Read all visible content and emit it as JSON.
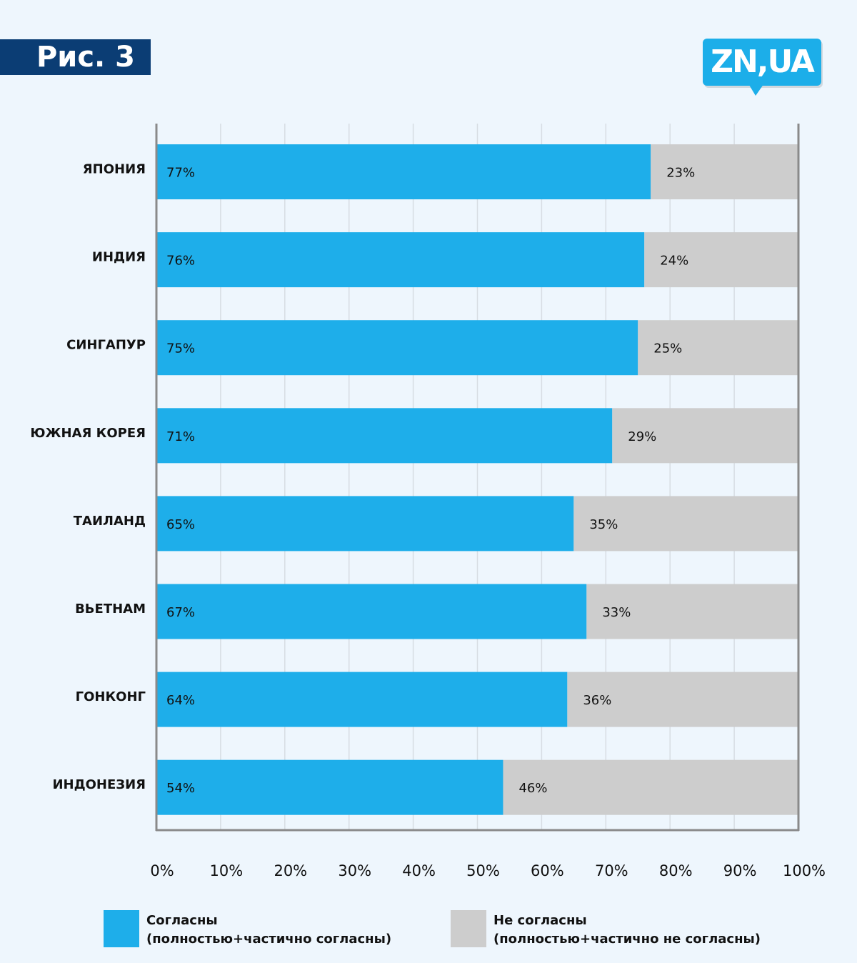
{
  "figure_label": "Рис. 3",
  "logo": {
    "text": "ZN,UA"
  },
  "colors": {
    "background": "#eef6fd",
    "agree": "#1eaeea",
    "disagree": "#cdcdcd",
    "figure_label_bg": "#0b3d74",
    "logo_bg": "#1caee9",
    "grid": "#d7dde3",
    "axis": "#8a8a8a"
  },
  "chart_data": {
    "type": "bar",
    "orientation": "horizontal",
    "stacked": true,
    "categories": [
      "ЯПОНИЯ",
      "ИНДИЯ",
      "СИНГАПУР",
      "ЮЖНАЯ КОРЕЯ",
      "ТАИЛАНД",
      "ВЬЕТНАМ",
      "ГОНКОНГ",
      "ИНДОНЕЗИЯ"
    ],
    "series": [
      {
        "name": "Согласны (полностью+частично согласны)",
        "values": [
          77,
          76,
          75,
          71,
          65,
          67,
          64,
          54
        ],
        "labels": [
          "77%",
          "76%",
          "75%",
          "71%",
          "65%",
          "67%",
          "64%",
          "54%"
        ]
      },
      {
        "name": "Не согласны (полностью+частично не согласны)",
        "values": [
          23,
          24,
          25,
          29,
          35,
          33,
          36,
          46
        ],
        "labels": [
          "23%",
          "24%",
          "25%",
          "29%",
          "35%",
          "33%",
          "36%",
          "46%"
        ]
      }
    ],
    "xlim": [
      0,
      100
    ],
    "x_ticks": [
      "0%",
      "10%",
      "20%",
      "30%",
      "40%",
      "50%",
      "60%",
      "70%",
      "80%",
      "90%",
      "100%"
    ],
    "grid": true,
    "legend_position": "bottom"
  },
  "legend": {
    "agree": {
      "line1": "Согласны",
      "line2": "(полностью+частично согласны)"
    },
    "disagree": {
      "line1": "Не согласны",
      "line2": "(полностью+частично не согласны)"
    }
  }
}
